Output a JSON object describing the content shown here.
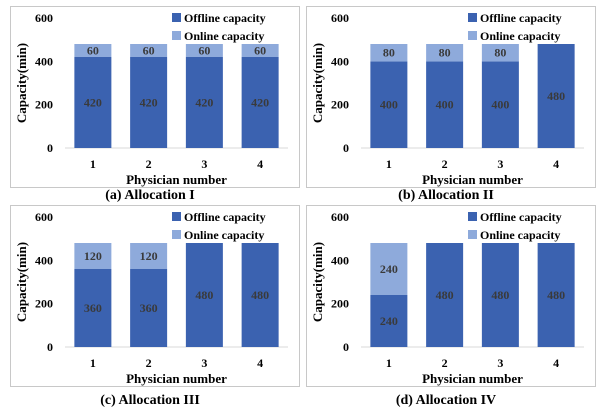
{
  "style": {
    "offline_color": "#3b62b0",
    "online_color": "#8eaadb",
    "frame_color": "#c8c8c8"
  },
  "chart_data": [
    {
      "type": "bar",
      "stacked": true,
      "caption": "(a) Allocation I",
      "categories": [
        "1",
        "2",
        "3",
        "4"
      ],
      "series": [
        {
          "name": "Offline capacity",
          "values": [
            420,
            420,
            420,
            420
          ]
        },
        {
          "name": "Online capacity",
          "values": [
            60,
            60,
            60,
            60
          ]
        }
      ],
      "xlabel": "Physician number",
      "ylabel": "Capacity(min)",
      "ylim": [
        0,
        600
      ],
      "yticks": [
        "0",
        "200",
        "400",
        "600"
      ],
      "grid": false,
      "legend": "top-right"
    },
    {
      "type": "bar",
      "stacked": true,
      "caption": "(b) Allocation II",
      "categories": [
        "1",
        "2",
        "3",
        "4"
      ],
      "series": [
        {
          "name": "Offline capacity",
          "values": [
            400,
            400,
            400,
            480
          ]
        },
        {
          "name": "Online capacity",
          "values": [
            80,
            80,
            80,
            0
          ]
        }
      ],
      "xlabel": "Physician number",
      "ylabel": "Capacity(min)",
      "ylim": [
        0,
        600
      ],
      "yticks": [
        "0",
        "200",
        "400",
        "600"
      ],
      "grid": false,
      "legend": "top-right"
    },
    {
      "type": "bar",
      "stacked": true,
      "caption": "(c) Allocation III",
      "categories": [
        "1",
        "2",
        "3",
        "4"
      ],
      "series": [
        {
          "name": "Offline capacity",
          "values": [
            360,
            360,
            480,
            480
          ]
        },
        {
          "name": "Online capacity",
          "values": [
            120,
            120,
            0,
            0
          ]
        }
      ],
      "xlabel": "Physician number",
      "ylabel": "Capacity(min)",
      "ylim": [
        0,
        600
      ],
      "yticks": [
        "0",
        "200",
        "400",
        "600"
      ],
      "grid": false,
      "legend": "top-right"
    },
    {
      "type": "bar",
      "stacked": true,
      "caption": "(d) Allocation IV",
      "categories": [
        "1",
        "2",
        "3",
        "4"
      ],
      "series": [
        {
          "name": "Offline capacity",
          "values": [
            240,
            480,
            480,
            480
          ]
        },
        {
          "name": "Online capacity",
          "values": [
            240,
            0,
            0,
            0
          ]
        }
      ],
      "xlabel": "Physician number",
      "ylabel": "Capacity(min)",
      "ylim": [
        0,
        600
      ],
      "yticks": [
        "0",
        "200",
        "400",
        "600"
      ],
      "grid": false,
      "legend": "top-right"
    }
  ]
}
